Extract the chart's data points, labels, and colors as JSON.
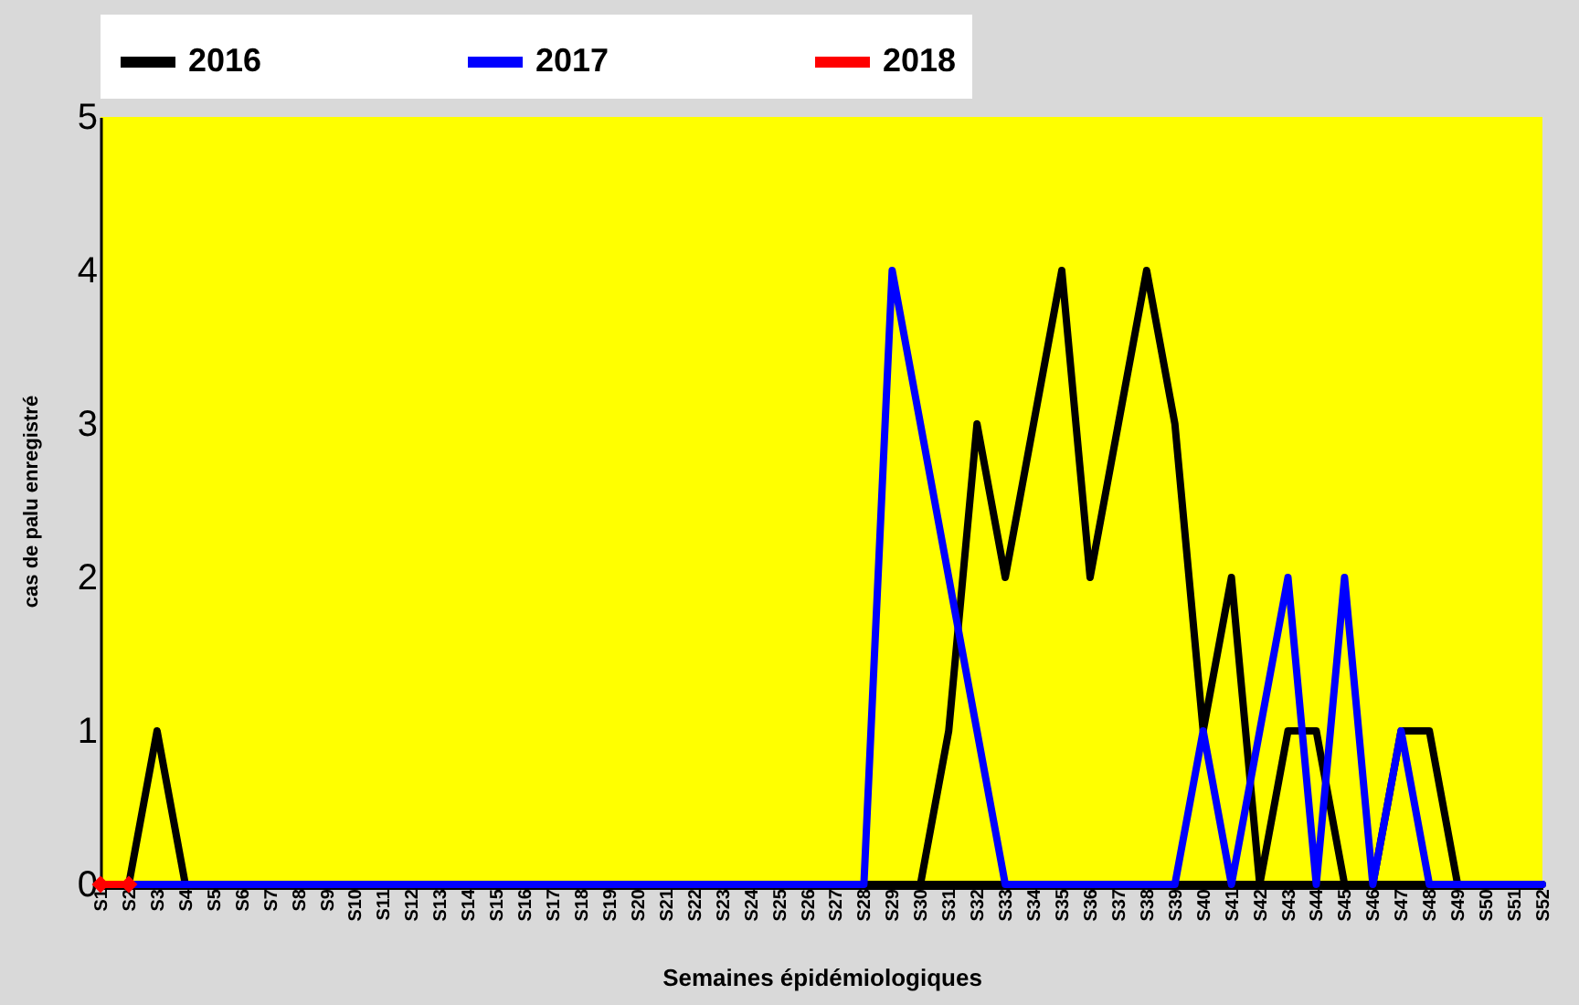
{
  "chart_data": {
    "type": "line",
    "xlabel": "Semaines épidémiologiques",
    "ylabel": "cas de palu enregistré",
    "categories": [
      "S1",
      "S2",
      "S3",
      "S4",
      "S5",
      "S6",
      "S7",
      "S8",
      "S9",
      "S10",
      "S11",
      "S12",
      "S13",
      "S14",
      "S15",
      "S16",
      "S17",
      "S18",
      "S19",
      "S20",
      "S21",
      "S22",
      "S23",
      "S24",
      "S25",
      "S26",
      "S27",
      "S28",
      "S29",
      "S30",
      "S31",
      "S32",
      "S33",
      "S34",
      "S35",
      "S36",
      "S37",
      "S38",
      "S39",
      "S40",
      "S41",
      "S42",
      "S43",
      "S44",
      "S45",
      "S46",
      "S47",
      "S48",
      "S49",
      "S50",
      "S51",
      "S52"
    ],
    "series": [
      {
        "name": "2016",
        "color": "#000000",
        "marker": "none",
        "values": [
          0,
          0,
          1,
          0,
          0,
          0,
          0,
          0,
          0,
          0,
          0,
          0,
          0,
          0,
          0,
          0,
          0,
          0,
          0,
          0,
          0,
          0,
          0,
          0,
          0,
          0,
          0,
          0,
          0,
          0,
          1,
          3,
          2,
          3,
          4,
          2,
          3,
          4,
          3,
          1,
          2,
          0,
          1,
          1,
          0,
          0,
          1,
          1,
          0,
          0,
          0,
          0
        ]
      },
      {
        "name": "2017",
        "color": "#0000ff",
        "marker": "none",
        "values": [
          0,
          0,
          0,
          0,
          0,
          0,
          0,
          0,
          0,
          0,
          0,
          0,
          0,
          0,
          0,
          0,
          0,
          0,
          0,
          0,
          0,
          0,
          0,
          0,
          0,
          0,
          0,
          0,
          4,
          3,
          2,
          1,
          0,
          0,
          0,
          0,
          0,
          0,
          0,
          1,
          0,
          1,
          2,
          0,
          2,
          0,
          1,
          0,
          0,
          0,
          0,
          0
        ]
      },
      {
        "name": "2018",
        "color": "#ff0000",
        "marker": "diamond",
        "values": [
          0,
          0,
          null,
          null,
          null,
          null,
          null,
          null,
          null,
          null,
          null,
          null,
          null,
          null,
          null,
          null,
          null,
          null,
          null,
          null,
          null,
          null,
          null,
          null,
          null,
          null,
          null,
          null,
          null,
          null,
          null,
          null,
          null,
          null,
          null,
          null,
          null,
          null,
          null,
          null,
          null,
          null,
          null,
          null,
          null,
          null,
          null,
          null,
          null,
          null,
          null,
          null
        ]
      }
    ],
    "ylim": [
      0,
      5
    ],
    "yticks": [
      0,
      1,
      2,
      3,
      4,
      5
    ],
    "grid": false,
    "legend": "top"
  }
}
